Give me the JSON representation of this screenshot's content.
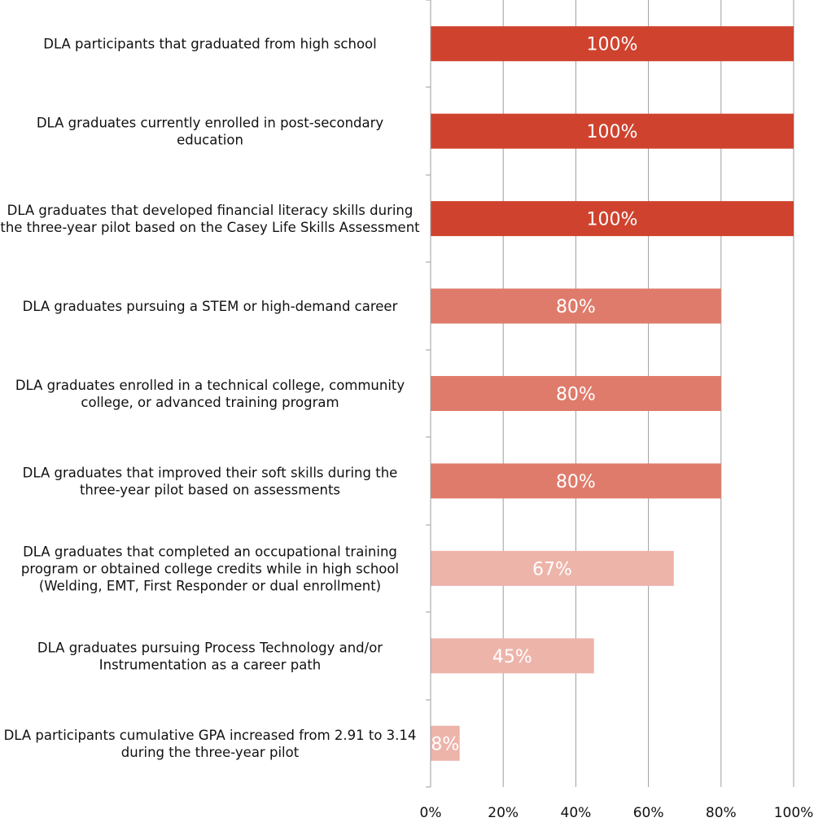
{
  "chart_data": {
    "type": "bar",
    "orientation": "horizontal",
    "title": "",
    "xlabel": "",
    "ylabel": "",
    "xlim": [
      0,
      100
    ],
    "x_ticks": [
      0,
      20,
      40,
      60,
      80,
      100
    ],
    "x_tick_labels": [
      "0%",
      "20%",
      "40%",
      "60%",
      "80%",
      "100%"
    ],
    "grid": true,
    "categories": [
      [
        "DLA participants that graduated from high school"
      ],
      [
        "DLA graduates currently enrolled in post-secondary",
        "education"
      ],
      [
        "DLA graduates that developed financial literacy skills during",
        "the three-year pilot based on the Casey Life Skills Assessment"
      ],
      [
        "DLA graduates pursuing a STEM or high-demand career"
      ],
      [
        "DLA graduates enrolled in a technical college, community",
        "college, or advanced training program"
      ],
      [
        "DLA graduates that improved their soft skills during the",
        "three-year pilot based on assessments"
      ],
      [
        "DLA graduates that completed an occupational training",
        "program or obtained college credits while in high school",
        "(Welding, EMT, First Responder or dual enrollment)"
      ],
      [
        "DLA graduates pursuing Process Technology and/or",
        "Instrumentation as a career path"
      ],
      [
        "DLA participants cumulative GPA increased from 2.91 to 3.14",
        "during the three-year pilot"
      ]
    ],
    "values": [
      100,
      100,
      100,
      80,
      80,
      80,
      67,
      45,
      8
    ],
    "data_labels": [
      "100%",
      "100%",
      "100%",
      "80%",
      "80%",
      "80%",
      "67%",
      "45%",
      "8%"
    ],
    "bar_colors": [
      "#cf432e",
      "#cf432e",
      "#cf432e",
      "#df7b6b",
      "#df7b6b",
      "#df7b6b",
      "#edb4aa",
      "#edb4aa",
      "#edb4aa"
    ],
    "grid_color": "#9e9e9e"
  }
}
